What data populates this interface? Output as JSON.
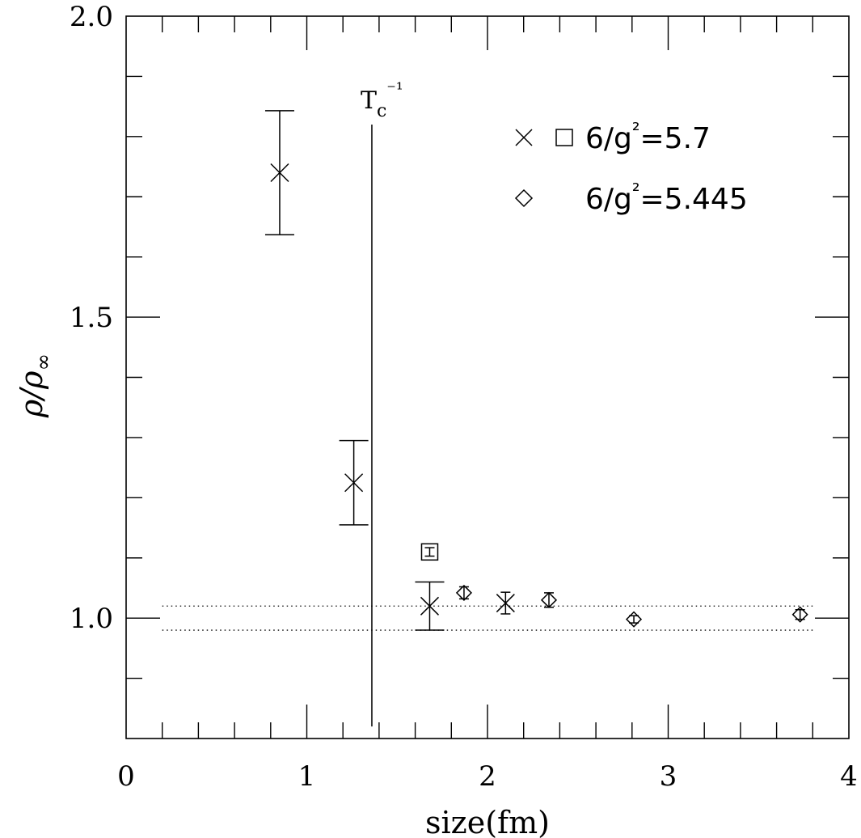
{
  "chart_data": {
    "type": "scatter",
    "title": "",
    "xlabel": "size(fm)",
    "ylabel": "ρ/ρ∞",
    "xlim": [
      0,
      4
    ],
    "ylim": [
      0.8,
      2.0
    ],
    "x_ticks": [
      {
        "value": 0,
        "label": "0"
      },
      {
        "value": 1,
        "label": "1"
      },
      {
        "value": 2,
        "label": "2"
      },
      {
        "value": 3,
        "label": "3"
      },
      {
        "value": 4,
        "label": "4"
      }
    ],
    "y_ticks": [
      {
        "value": 1.0,
        "label": "1.0"
      },
      {
        "value": 1.5,
        "label": "1.5"
      },
      {
        "value": 2.0,
        "label": "2.0"
      }
    ],
    "x_minor_step": 0.2,
    "y_minor_step": 0.1,
    "grid": false,
    "legend_position": "top-right",
    "legend": [
      {
        "markers": [
          "cross",
          "square"
        ],
        "text": "6/g²=5.7"
      },
      {
        "markers": [
          "diamond"
        ],
        "text": "6/g²=5.445"
      }
    ],
    "annotations": {
      "vertical_line": {
        "x": 1.36,
        "y_from": 0.82,
        "y_to": 1.82,
        "label": "Tc⁻¹"
      },
      "band": {
        "y_upper": 1.02,
        "y_lower": 0.98,
        "x_from": 0.2,
        "x_to": 3.8,
        "style": "dotted"
      }
    },
    "series": [
      {
        "name": "6/g²=5.7",
        "marker": "cross",
        "points": [
          {
            "x": 0.85,
            "y": 1.74,
            "err": 0.103
          },
          {
            "x": 1.26,
            "y": 1.225,
            "err": 0.07
          },
          {
            "x": 1.68,
            "y": 1.02,
            "err": 0.04
          },
          {
            "x": 2.1,
            "y": 1.025,
            "err": 0.018
          }
        ]
      },
      {
        "name": "6/g²=5.7",
        "marker": "square",
        "points": [
          {
            "x": 1.68,
            "y": 1.11,
            "err": 0.007
          }
        ]
      },
      {
        "name": "6/g²=5.445",
        "marker": "diamond",
        "points": [
          {
            "x": 1.87,
            "y": 1.042,
            "err": 0.01
          },
          {
            "x": 2.34,
            "y": 1.03,
            "err": 0.012
          },
          {
            "x": 2.81,
            "y": 0.998,
            "err": 0.006
          },
          {
            "x": 3.73,
            "y": 1.006,
            "err": 0.008
          }
        ]
      }
    ]
  }
}
